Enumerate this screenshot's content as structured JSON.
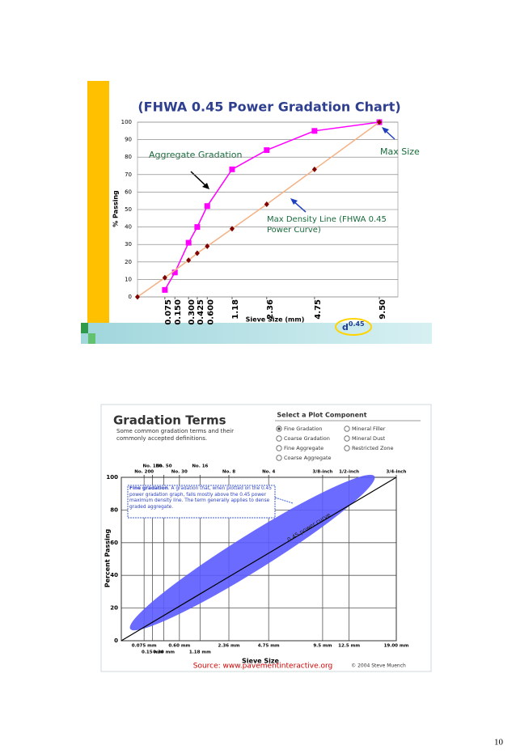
{
  "chart_data": [
    {
      "type": "line",
      "title": "(FHWA 0.45 Power Gradation Chart)",
      "ylabel": "% Passing",
      "xlabel": "Sieve Size (mm)",
      "x_scale_power": 0.45,
      "x_power_label": {
        "base": "d",
        "exponent": "0.45"
      },
      "xlim": [
        0,
        9.5
      ],
      "ylim": [
        0,
        100
      ],
      "yticks": [
        0,
        10,
        20,
        30,
        40,
        50,
        60,
        70,
        80,
        90,
        100
      ],
      "xticks": [
        0.075,
        {
          "value": 0.15,
          "label": "0.150"
        },
        {
          "value": 0.3,
          "label": "0.300"
        },
        0.425,
        {
          "value": 0.6,
          "label": "0.600"
        },
        1.18,
        2.36,
        4.75,
        {
          "value": 9.5,
          "label": "9.50"
        }
      ],
      "grid": true,
      "series": [
        {
          "name": "Aggregate Gradation",
          "color": "#ff00ff",
          "marker": "square",
          "x": [
            0.075,
            0.15,
            0.3,
            0.425,
            0.6,
            1.18,
            2.36,
            4.75,
            9.5
          ],
          "values": [
            4,
            14,
            31,
            40,
            52,
            73,
            84,
            95,
            100
          ]
        },
        {
          "name": "Max Density Line (FHWA 0.45 Power Curve)",
          "color": "#f4b183",
          "marker": "diamond",
          "marker_color": "#7f0000",
          "x": [
            0,
            0.075,
            0.3,
            0.425,
            0.6,
            1.18,
            2.36,
            4.75,
            9.5
          ],
          "values": [
            0,
            11,
            21,
            25,
            29,
            39,
            53,
            73,
            100
          ]
        }
      ],
      "annotation": "Max Size"
    },
    {
      "type": "line",
      "title": "Gradation Terms",
      "subtitle": "Some common gradation terms and their commonly accepted definitions.",
      "controls_title": "Select a Plot Component",
      "options": [
        "Fine Gradation",
        "Mineral Filler",
        "Coarse Gradation",
        "Mineral Dust",
        "Fine Aggregate",
        "Restricted Zone",
        "Coarse Aggregate"
      ],
      "selected_option": 0,
      "ylabel": "Percent Passing",
      "xlabel": "Sieve Size",
      "x_scale_power": 0.45,
      "xlim": [
        0,
        19
      ],
      "ylim": [
        0,
        100
      ],
      "yticks": [
        0,
        20,
        40,
        60,
        80,
        100
      ],
      "xticks": [
        {
          "value": 0.075,
          "label": "0.075 mm"
        },
        {
          "value": 0.15,
          "label": "0.15 mm"
        },
        {
          "value": 0.3,
          "label": "0.30 mm"
        },
        {
          "value": 0.6,
          "label": "0.60 mm"
        },
        {
          "value": 1.18,
          "label": "1.18 mm"
        },
        {
          "value": 2.36,
          "label": "2.36 mm"
        },
        {
          "value": 4.75,
          "label": "4.75 mm"
        },
        {
          "value": 9.5,
          "label": "9.5 mm"
        },
        {
          "value": 12.5,
          "label": "12.5 mm"
        },
        {
          "value": 19,
          "label": "19.00 mm"
        }
      ],
      "x2ticks": [
        {
          "value": 0.075,
          "label": "No. 200"
        },
        {
          "value": 0.15,
          "label": "No. 100"
        },
        {
          "value": 0.3,
          "label": "No. 50"
        },
        {
          "value": 0.6,
          "label": "No. 30"
        },
        {
          "value": 1.18,
          "label": "No. 16"
        },
        {
          "value": 2.36,
          "label": "No. 8"
        },
        {
          "value": 4.75,
          "label": "No. 4"
        },
        {
          "value": 9.5,
          "label": "3/8-inch"
        },
        {
          "value": 12.5,
          "label": "1/2-inch"
        },
        {
          "value": 19,
          "label": "3/4-inch"
        }
      ],
      "grid": true,
      "series": [
        {
          "color": "#000000",
          "x": [
            0,
            19
          ],
          "values": [
            0,
            100
          ]
        }
      ],
      "band_color": "#5b5bff",
      "band_label": "0.45 power curve",
      "callout_term": "Fine gradation",
      "callout": ". A gradation that, when plotted on the 0.45 power gradation graph, falls mostly above the 0.45 power maximum density line. The term generally applies to dense graded aggregate.",
      "credit": "© 2004 Steve Muench"
    }
  ],
  "source": "Source: www.pavementinteractive.org",
  "page_number": "10"
}
